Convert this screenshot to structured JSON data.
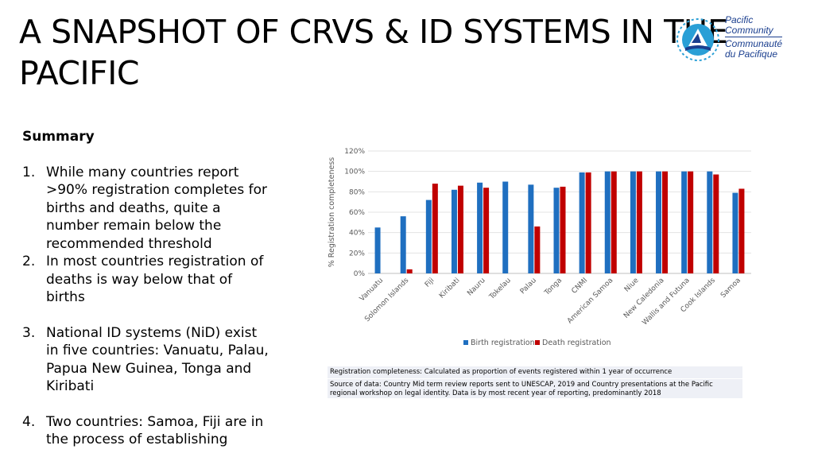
{
  "title": "A SNAPSHOT OF CRVS & ID SYSTEMS IN THE PACIFIC",
  "logo": {
    "line1": "Pacific",
    "line2": "Community",
    "line3": "Communauté",
    "line4": "du Pacifique"
  },
  "summary": {
    "heading": "Summary",
    "items": [
      {
        "num": "1.",
        "text": "While many countries report >90% registration completes for births and deaths, quite a number remain below the recommended threshold"
      },
      {
        "num": "2.",
        "text": "In most countries registration of deaths is way below that of births"
      },
      {
        "num": "3.",
        "text": "National ID systems (NiD) exist in five countries: Vanuatu, Palau, Papua New Guinea, Tonga and Kiribati"
      },
      {
        "num": "4.",
        "text": "Two countries: Samoa, Fiji are in the process of establishing"
      }
    ]
  },
  "notes": {
    "line1": "Registration completeness: Calculated as proportion of events registered within 1 year of occurrence",
    "line2": "Source of data: Country Mid term review reports sent to UNESCAP, 2019 and Country presentations at the Pacific regional workshop on legal identity. Data is by most recent year of reporting, predominantly 2018"
  },
  "chart_data": {
    "type": "bar",
    "title": "",
    "xlabel": "",
    "ylabel": "% Registration completeness",
    "ylim": [
      0,
      120
    ],
    "yticks": [
      "0%",
      "20%",
      "40%",
      "60%",
      "80%",
      "100%",
      "120%"
    ],
    "grid": true,
    "legend_position": "bottom",
    "categories": [
      "Vanuatu",
      "Solomon Islands",
      "Fiji",
      "Kiribati",
      "Nauru",
      "Tokelau",
      "Palau",
      "Tonga",
      "CNMI",
      "American Samoa",
      "Niue",
      "New Caledonia",
      "Wallis and Futuna",
      "Cook Islands",
      "Samoa"
    ],
    "series": [
      {
        "name": "Birth registration",
        "color": "#1f6fc0",
        "values": [
          45,
          56,
          72,
          82,
          89,
          90,
          87,
          84,
          99,
          100,
          100,
          100,
          100,
          100,
          79
        ]
      },
      {
        "name": "Death registration",
        "color": "#c00000",
        "values": [
          null,
          4,
          88,
          86,
          84,
          null,
          46,
          85,
          99,
          100,
          100,
          100,
          100,
          97,
          83
        ]
      }
    ]
  }
}
